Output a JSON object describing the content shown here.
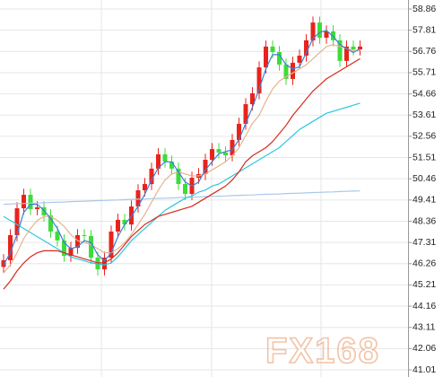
{
  "chart_data": {
    "type": "candlestick",
    "watermark": "FX168",
    "ylim": [
      41.01,
      58.86
    ],
    "yticks": [
      58.86,
      57.81,
      56.76,
      55.71,
      54.66,
      53.61,
      52.56,
      51.51,
      50.46,
      49.41,
      48.36,
      47.31,
      46.26,
      45.21,
      44.16,
      43.11,
      42.06,
      41.01
    ],
    "grid": true,
    "up_color": "#e8231c",
    "down_color": "#3ddc3a",
    "open": [
      46.1,
      46.43,
      47.67,
      49.0,
      49.67,
      48.96,
      49.05,
      48.65,
      47.85,
      47.41,
      46.65,
      47.05,
      47.67,
      47.63,
      46.56,
      45.98,
      46.56,
      47.85,
      48.43,
      48.2,
      49.09,
      49.89,
      50.2,
      50.96,
      51.67,
      51.31,
      50.96,
      50.2,
      49.71,
      50.51,
      50.69,
      51.4,
      51.93,
      51.76,
      51.62,
      52.38,
      53.18,
      54.15,
      54.69,
      55.97,
      57.0,
      56.73,
      56.11,
      55.4,
      56.2,
      56.55,
      57.31,
      58.19,
      57.44,
      57.75,
      57.31,
      56.29,
      57.0,
      56.86
    ],
    "high": [
      46.73,
      47.97,
      49.3,
      49.97,
      49.97,
      49.35,
      49.35,
      48.95,
      48.15,
      47.71,
      47.35,
      47.97,
      47.97,
      47.93,
      46.86,
      46.86,
      48.15,
      48.73,
      48.73,
      49.39,
      50.19,
      50.5,
      51.26,
      51.97,
      51.97,
      51.61,
      51.26,
      50.5,
      50.81,
      50.99,
      51.7,
      52.23,
      52.23,
      52.06,
      52.68,
      53.48,
      54.45,
      54.99,
      56.27,
      57.3,
      57.3,
      57.03,
      56.41,
      56.5,
      56.85,
      57.61,
      58.49,
      58.49,
      58.05,
      58.05,
      57.61,
      57.3,
      57.3,
      57.3
    ],
    "low": [
      45.8,
      46.13,
      47.37,
      48.7,
      48.66,
      48.66,
      48.35,
      47.55,
      47.11,
      46.35,
      46.35,
      46.75,
      47.33,
      46.26,
      45.68,
      45.68,
      46.26,
      47.55,
      47.9,
      47.9,
      48.79,
      49.59,
      49.9,
      50.66,
      51.01,
      50.66,
      49.9,
      49.41,
      49.41,
      50.21,
      50.39,
      51.1,
      51.46,
      51.32,
      51.32,
      52.08,
      52.88,
      53.85,
      54.39,
      55.67,
      56.43,
      55.81,
      55.1,
      55.1,
      55.9,
      56.25,
      57.01,
      57.14,
      57.14,
      57.01,
      55.99,
      55.99,
      56.56,
      56.56
    ],
    "close": [
      46.43,
      47.67,
      49.0,
      49.67,
      48.96,
      49.05,
      48.65,
      47.85,
      47.41,
      46.65,
      47.05,
      47.67,
      47.63,
      46.56,
      45.98,
      46.56,
      47.85,
      48.43,
      48.2,
      49.09,
      49.89,
      50.2,
      50.96,
      51.67,
      51.31,
      50.96,
      50.2,
      49.71,
      50.51,
      50.69,
      51.4,
      51.93,
      51.76,
      51.62,
      52.38,
      53.18,
      54.15,
      54.69,
      55.97,
      57.0,
      56.73,
      56.11,
      55.4,
      56.2,
      56.55,
      57.31,
      58.19,
      57.44,
      57.75,
      57.31,
      56.29,
      57.0,
      56.86,
      57.0
    ],
    "lines": [
      {
        "color": "#a9c9ea",
        "values": [
          49.2,
          49.21,
          49.23,
          49.24,
          49.25,
          49.26,
          49.28,
          49.29,
          49.3,
          49.31,
          49.33,
          49.34,
          49.35,
          49.36,
          49.38,
          49.39,
          49.4,
          49.41,
          49.43,
          49.44,
          49.45,
          49.46,
          49.48,
          49.49,
          49.5,
          49.51,
          49.53,
          49.54,
          49.55,
          49.56,
          49.58,
          49.59,
          49.6,
          49.61,
          49.63,
          49.64,
          49.65,
          49.66,
          49.68,
          49.69,
          49.7,
          49.71,
          49.73,
          49.74,
          49.75,
          49.76,
          49.78,
          49.79,
          49.8,
          49.81,
          49.83,
          49.84,
          49.85,
          49.86
        ]
      },
      {
        "color": "#2ec7de",
        "values": [
          48.6,
          48.4,
          48.2,
          48.0,
          47.8,
          47.6,
          47.4,
          47.2,
          47.0,
          46.8,
          46.6,
          46.5,
          46.4,
          46.3,
          46.25,
          46.2,
          46.3,
          46.6,
          47.0,
          47.4,
          47.7,
          48.0,
          48.3,
          48.6,
          48.9,
          49.1,
          49.3,
          49.5,
          49.6,
          49.8,
          49.9,
          50.1,
          50.2,
          50.4,
          50.6,
          50.8,
          51.0,
          51.2,
          51.4,
          51.6,
          51.8,
          52.0,
          52.3,
          52.6,
          52.9,
          53.1,
          53.3,
          53.5,
          53.7,
          53.8,
          53.9,
          54.0,
          54.1,
          54.2
        ]
      },
      {
        "color": "#d62a1c",
        "values": [
          45.0,
          45.4,
          45.9,
          46.3,
          46.6,
          46.8,
          46.9,
          46.9,
          46.9,
          46.8,
          46.7,
          46.6,
          46.5,
          46.4,
          46.3,
          46.3,
          46.5,
          46.8,
          47.2,
          47.6,
          47.9,
          48.2,
          48.4,
          48.6,
          48.7,
          48.8,
          48.9,
          49.0,
          49.1,
          49.3,
          49.5,
          49.7,
          49.9,
          50.1,
          50.4,
          50.8,
          51.3,
          51.6,
          51.8,
          52.0,
          52.3,
          52.7,
          53.1,
          53.6,
          54.0,
          54.4,
          54.8,
          55.1,
          55.4,
          55.6,
          55.8,
          56.0,
          56.2,
          56.4
        ]
      },
      {
        "color": "#e6b38f",
        "values": [
          45.8,
          46.2,
          46.8,
          47.5,
          48.0,
          48.4,
          48.6,
          48.6,
          48.4,
          48.1,
          47.7,
          47.4,
          47.3,
          47.2,
          47.0,
          46.8,
          46.8,
          47.0,
          47.3,
          47.7,
          48.2,
          48.7,
          49.3,
          49.9,
          50.4,
          50.7,
          50.8,
          50.7,
          50.6,
          50.6,
          50.7,
          50.9,
          51.1,
          51.3,
          51.6,
          52.0,
          52.6,
          53.2,
          53.6,
          54.3,
          54.9,
          55.3,
          55.5,
          55.7,
          55.9,
          56.1,
          56.4,
          56.7,
          57.0,
          57.1,
          57.0,
          56.9,
          56.8,
          56.8
        ]
      },
      {
        "color": "#3b7fd8",
        "values": [
          46.2,
          46.8,
          47.7,
          48.8,
          49.2,
          49.2,
          48.9,
          48.5,
          48.0,
          47.3,
          47.0,
          47.1,
          47.4,
          47.3,
          46.7,
          46.4,
          46.8,
          47.6,
          48.2,
          48.6,
          49.1,
          49.7,
          50.4,
          51.0,
          51.3,
          51.3,
          50.8,
          50.3,
          50.1,
          50.3,
          50.9,
          51.3,
          51.7,
          51.8,
          51.9,
          52.4,
          53.2,
          54.0,
          54.9,
          55.9,
          56.6,
          56.6,
          56.1,
          55.9,
          56.0,
          56.7,
          57.4,
          57.7,
          57.8,
          57.5,
          57.1,
          56.9,
          56.7,
          56.9
        ]
      }
    ]
  }
}
